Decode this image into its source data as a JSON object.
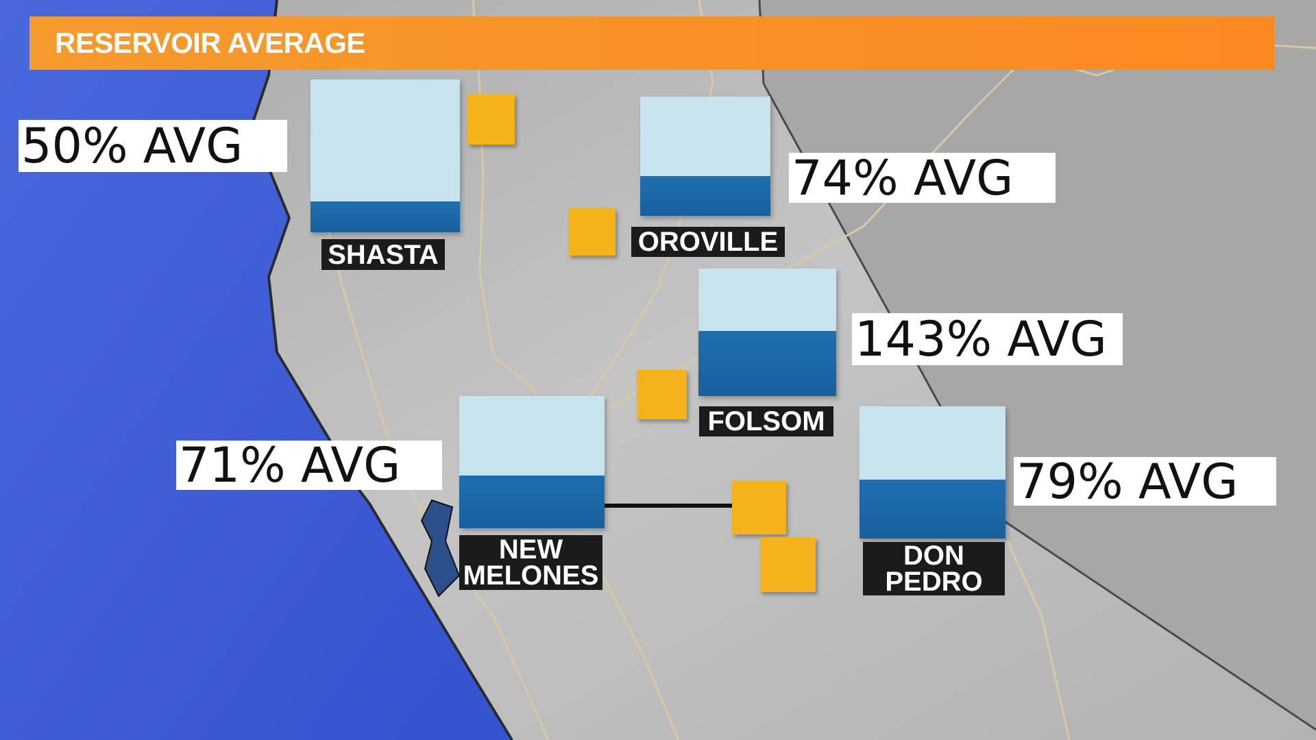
{
  "header": {
    "title": "RESERVOIR AVERAGE"
  },
  "reservoirs": [
    {
      "name": "SHASTA",
      "average": "50% AVG"
    },
    {
      "name": "OROVILLE",
      "average": "74% AVG"
    },
    {
      "name": "FOLSOM",
      "average": "143% AVG"
    },
    {
      "name": "NEW MELONES",
      "average": "71% AVG"
    },
    {
      "name": "DON PEDRO",
      "average": "79% AVG"
    }
  ]
}
